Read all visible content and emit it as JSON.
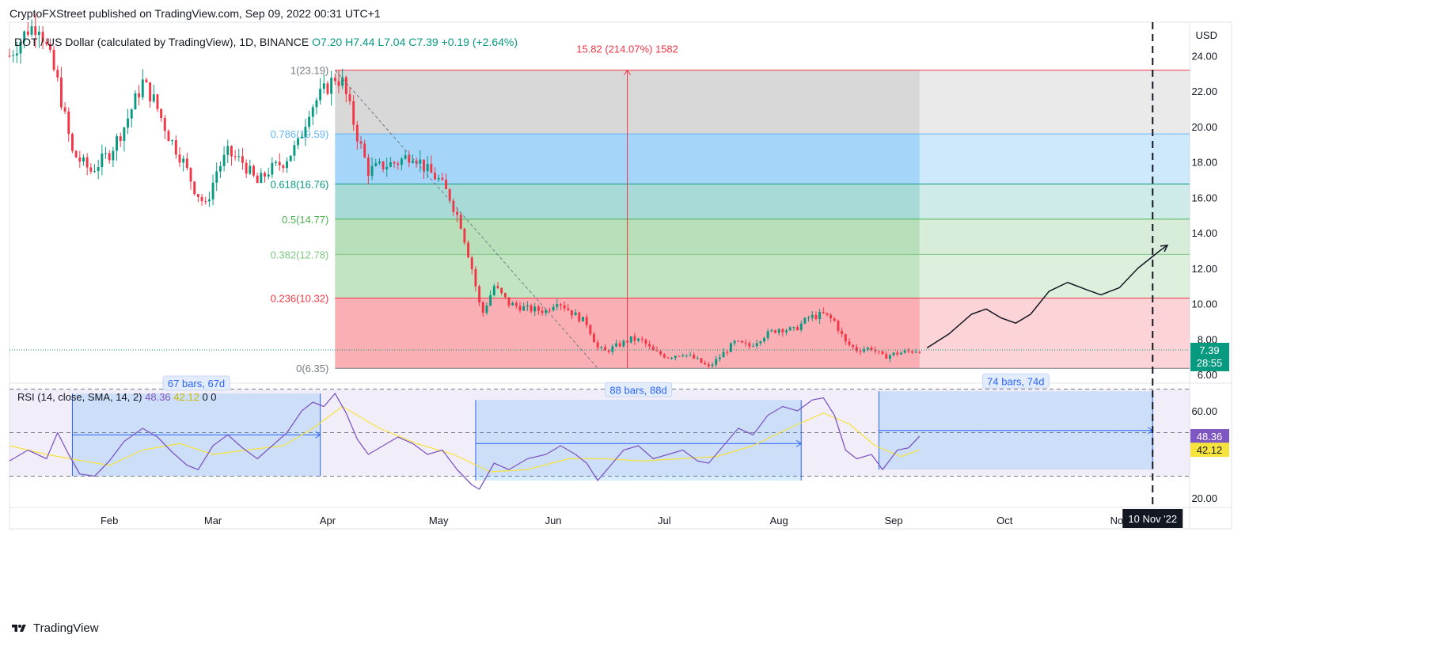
{
  "header": {
    "publish_line": "CryptoFXStreet published on TradingView.com, Sep 09, 2022 00:31 UTC+1"
  },
  "footer": {
    "brand": "TradingView"
  },
  "symbol_bar": {
    "symbol": "DOT / US Dollar (calculated by TradingView), 1D, BINANCE",
    "open": "O7.20",
    "high": "H7.44",
    "low": "L7.04",
    "close": "C7.39",
    "change": "+0.19 (+2.64%)"
  },
  "rsi_bar": {
    "label": "RSI (14, close, SMA, 14, 2)",
    "rsi_value": "48.36",
    "sma_value": "42.12",
    "extra": "0 0"
  },
  "colors": {
    "up": "#089981",
    "down": "#f23645",
    "rsi": "#7e57c2",
    "rsi_ma": "#f7e33e",
    "fib_line_red": "#f23645",
    "fib_light_blue": "#64b5f6",
    "fib_teal": "#089981",
    "fib_green": "#4caf50",
    "fib_lightgreen": "#81c784",
    "fib_gray": "#787b86",
    "measure_blue": "#2962ff"
  },
  "chart_data": [
    {
      "type": "candlestick",
      "title": "DOT / US Dollar (calculated by TradingView), 1D, BINANCE",
      "ylabel": "USD",
      "y_ticks": [
        "6.00",
        "8.00",
        "10.00",
        "12.00",
        "14.00",
        "16.00",
        "18.00",
        "20.00",
        "22.00",
        "24.00"
      ],
      "ylim": [
        5.6,
        25.9
      ],
      "x_ticks": [
        "Feb",
        "Mar",
        "Apr",
        "May",
        "Jun",
        "Jul",
        "Aug",
        "Sep",
        "Oct",
        "Nov"
      ],
      "x_tick_dates": [
        "2022-02-01",
        "2022-03-01",
        "2022-04-01",
        "2022-05-01",
        "2022-06-01",
        "2022-07-01",
        "2022-08-01",
        "2022-09-01",
        "2022-10-01",
        "2022-11-01"
      ],
      "x_range": [
        "2022-01-05",
        "2022-11-20"
      ],
      "trend_close": [
        [
          "2022-01-05",
          24.0
        ],
        [
          "2022-01-10",
          25.5
        ],
        [
          "2022-01-13",
          25.8
        ],
        [
          "2022-01-18",
          22.5
        ],
        [
          "2022-01-22",
          18.5
        ],
        [
          "2022-01-27",
          17.5
        ],
        [
          "2022-02-01",
          18.5
        ],
        [
          "2022-02-05",
          20.0
        ],
        [
          "2022-02-10",
          22.5
        ],
        [
          "2022-02-13",
          21.5
        ],
        [
          "2022-02-17",
          19.5
        ],
        [
          "2022-02-21",
          18.0
        ],
        [
          "2022-02-24",
          16.5
        ],
        [
          "2022-02-27",
          15.5
        ],
        [
          "2022-03-02",
          17.5
        ],
        [
          "2022-03-05",
          18.5
        ],
        [
          "2022-03-09",
          18.0
        ],
        [
          "2022-03-13",
          16.8
        ],
        [
          "2022-03-16",
          17.5
        ],
        [
          "2022-03-20",
          18.0
        ],
        [
          "2022-03-24",
          19.0
        ],
        [
          "2022-03-27",
          21.0
        ],
        [
          "2022-03-31",
          22.0
        ],
        [
          "2022-04-03",
          22.8
        ],
        [
          "2022-04-05",
          22.5
        ],
        [
          "2022-04-09",
          19.5
        ],
        [
          "2022-04-12",
          17.5
        ],
        [
          "2022-04-16",
          17.8
        ],
        [
          "2022-04-20",
          18.0
        ],
        [
          "2022-04-24",
          18.5
        ],
        [
          "2022-04-28",
          17.5
        ],
        [
          "2022-05-01",
          17.0
        ],
        [
          "2022-05-04",
          16.0
        ],
        [
          "2022-05-07",
          14.5
        ],
        [
          "2022-05-10",
          12.0
        ],
        [
          "2022-05-12",
          10.0
        ],
        [
          "2022-05-13",
          9.5
        ],
        [
          "2022-05-16",
          11.0
        ],
        [
          "2022-05-20",
          10.0
        ],
        [
          "2022-05-25",
          9.7
        ],
        [
          "2022-05-30",
          9.6
        ],
        [
          "2022-06-02",
          10.2
        ],
        [
          "2022-06-06",
          9.5
        ],
        [
          "2022-06-10",
          8.9
        ],
        [
          "2022-06-13",
          7.5
        ],
        [
          "2022-06-15",
          7.3
        ],
        [
          "2022-06-18",
          7.6
        ],
        [
          "2022-06-22",
          8.0
        ],
        [
          "2022-06-25",
          7.9
        ],
        [
          "2022-06-28",
          7.3
        ],
        [
          "2022-07-02",
          7.0
        ],
        [
          "2022-07-06",
          7.2
        ],
        [
          "2022-07-10",
          6.8
        ],
        [
          "2022-07-13",
          6.4
        ],
        [
          "2022-07-16",
          7.0
        ],
        [
          "2022-07-20",
          7.8
        ],
        [
          "2022-07-24",
          7.6
        ],
        [
          "2022-07-28",
          8.2
        ],
        [
          "2022-08-01",
          8.6
        ],
        [
          "2022-08-05",
          8.5
        ],
        [
          "2022-08-09",
          9.2
        ],
        [
          "2022-08-13",
          9.4
        ],
        [
          "2022-08-16",
          9.0
        ],
        [
          "2022-08-19",
          7.8
        ],
        [
          "2022-08-22",
          7.4
        ],
        [
          "2022-08-26",
          7.5
        ],
        [
          "2022-08-29",
          7.0
        ],
        [
          "2022-09-02",
          7.2
        ],
        [
          "2022-09-05",
          7.3
        ],
        [
          "2022-09-08",
          7.39
        ]
      ],
      "fibonacci": {
        "from": "2022-04-03",
        "to": "2022-09-08",
        "extends_to": "2022-11-20",
        "levels": [
          {
            "label": "1(23.19)",
            "price": 23.19
          },
          {
            "label": "0.786(19.59)",
            "price": 19.59
          },
          {
            "label": "0.618(16.76)",
            "price": 16.76
          },
          {
            "label": "0.5(14.77)",
            "price": 14.77
          },
          {
            "label": "0.382(12.78)",
            "price": 12.78
          },
          {
            "label": "0.236(10.32)",
            "price": 10.32
          },
          {
            "label": "0(6.35)",
            "price": 6.35
          }
        ]
      },
      "measure_label": "15.82 (214.07%) 1582",
      "measure_date": "2022-06-21",
      "trend_line": [
        [
          "2022-04-03",
          23.19
        ],
        [
          "2022-06-13",
          6.35
        ]
      ],
      "projection_path": [
        [
          "2022-09-10",
          7.5
        ],
        [
          "2022-09-16",
          8.3
        ],
        [
          "2022-09-22",
          9.4
        ],
        [
          "2022-09-26",
          9.7
        ],
        [
          "2022-09-30",
          9.2
        ],
        [
          "2022-10-04",
          8.9
        ],
        [
          "2022-10-08",
          9.4
        ],
        [
          "2022-10-13",
          10.7
        ],
        [
          "2022-10-18",
          11.2
        ],
        [
          "2022-10-23",
          10.8
        ],
        [
          "2022-10-27",
          10.5
        ],
        [
          "2022-11-01",
          10.9
        ],
        [
          "2022-11-06",
          12.0
        ],
        [
          "2022-11-12",
          13.0
        ],
        [
          "2022-11-14",
          13.3
        ]
      ],
      "future_marker_date": "2022-11-10",
      "future_marker_label": "10 Nov '22",
      "last_price": "7.39",
      "countdown": "28:55"
    },
    {
      "type": "line",
      "title": "RSI (14, close, SMA, 14, 2)",
      "y_ticks": [
        "20.00",
        "60.00"
      ],
      "ylim": [
        16,
        72
      ],
      "bands": [
        70,
        50,
        30
      ],
      "series": [
        {
          "name": "RSI",
          "values": [
            [
              "2022-01-05",
              37
            ],
            [
              "2022-01-10",
              42
            ],
            [
              "2022-01-15",
              38
            ],
            [
              "2022-01-18",
              50
            ],
            [
              "2022-01-21",
              40
            ],
            [
              "2022-01-24",
              31
            ],
            [
              "2022-01-28",
              30
            ],
            [
              "2022-02-01",
              37
            ],
            [
              "2022-02-05",
              46
            ],
            [
              "2022-02-10",
              52
            ],
            [
              "2022-02-14",
              48
            ],
            [
              "2022-02-18",
              41
            ],
            [
              "2022-02-22",
              35
            ],
            [
              "2022-02-25",
              33
            ],
            [
              "2022-03-01",
              44
            ],
            [
              "2022-03-05",
              49
            ],
            [
              "2022-03-09",
              43
            ],
            [
              "2022-03-13",
              38
            ],
            [
              "2022-03-17",
              44
            ],
            [
              "2022-03-21",
              50
            ],
            [
              "2022-03-25",
              60
            ],
            [
              "2022-03-28",
              64
            ],
            [
              "2022-03-31",
              62
            ],
            [
              "2022-04-03",
              68
            ],
            [
              "2022-04-06",
              59
            ],
            [
              "2022-04-09",
              47
            ],
            [
              "2022-04-12",
              40
            ],
            [
              "2022-04-16",
              44
            ],
            [
              "2022-04-20",
              48
            ],
            [
              "2022-04-24",
              45
            ],
            [
              "2022-04-28",
              40
            ],
            [
              "2022-05-02",
              42
            ],
            [
              "2022-05-06",
              33
            ],
            [
              "2022-05-10",
              26
            ],
            [
              "2022-05-12",
              24
            ],
            [
              "2022-05-16",
              36
            ],
            [
              "2022-05-20",
              33
            ],
            [
              "2022-05-25",
              38
            ],
            [
              "2022-05-30",
              40
            ],
            [
              "2022-06-03",
              44
            ],
            [
              "2022-06-07",
              40
            ],
            [
              "2022-06-10",
              36
            ],
            [
              "2022-06-13",
              28
            ],
            [
              "2022-06-16",
              34
            ],
            [
              "2022-06-20",
              42
            ],
            [
              "2022-06-24",
              44
            ],
            [
              "2022-06-28",
              38
            ],
            [
              "2022-07-02",
              40
            ],
            [
              "2022-07-06",
              42
            ],
            [
              "2022-07-10",
              37
            ],
            [
              "2022-07-13",
              36
            ],
            [
              "2022-07-17",
              44
            ],
            [
              "2022-07-21",
              52
            ],
            [
              "2022-07-25",
              49
            ],
            [
              "2022-07-29",
              58
            ],
            [
              "2022-08-02",
              62
            ],
            [
              "2022-08-06",
              60
            ],
            [
              "2022-08-10",
              65
            ],
            [
              "2022-08-13",
              66
            ],
            [
              "2022-08-16",
              58
            ],
            [
              "2022-08-19",
              42
            ],
            [
              "2022-08-22",
              38
            ],
            [
              "2022-08-26",
              40
            ],
            [
              "2022-08-29",
              33
            ],
            [
              "2022-09-02",
              42
            ],
            [
              "2022-09-05",
              43
            ],
            [
              "2022-09-08",
              48.36
            ]
          ]
        },
        {
          "name": "SMA",
          "values": [
            [
              "2022-01-05",
              44
            ],
            [
              "2022-01-15",
              40
            ],
            [
              "2022-01-25",
              37
            ],
            [
              "2022-02-01",
              35
            ],
            [
              "2022-02-10",
              42
            ],
            [
              "2022-02-20",
              45
            ],
            [
              "2022-03-01",
              40
            ],
            [
              "2022-03-10",
              42
            ],
            [
              "2022-03-20",
              44
            ],
            [
              "2022-03-28",
              52
            ],
            [
              "2022-04-05",
              62
            ],
            [
              "2022-04-15",
              52
            ],
            [
              "2022-04-25",
              45
            ],
            [
              "2022-05-05",
              40
            ],
            [
              "2022-05-15",
              32
            ],
            [
              "2022-05-25",
              33
            ],
            [
              "2022-06-05",
              38
            ],
            [
              "2022-06-15",
              38
            ],
            [
              "2022-06-25",
              37
            ],
            [
              "2022-07-05",
              38
            ],
            [
              "2022-07-15",
              39
            ],
            [
              "2022-07-25",
              44
            ],
            [
              "2022-08-05",
              53
            ],
            [
              "2022-08-13",
              59
            ],
            [
              "2022-08-20",
              54
            ],
            [
              "2022-08-27",
              44
            ],
            [
              "2022-09-03",
              39
            ],
            [
              "2022-09-08",
              42.12
            ]
          ]
        }
      ],
      "measures": [
        {
          "label": "67 bars, 67d",
          "from": "2022-01-22",
          "to": "2022-03-30",
          "top": 68,
          "bottom": 30,
          "arrow_at": 49
        },
        {
          "label": "88 bars, 88d",
          "from": "2022-05-11",
          "to": "2022-08-07",
          "top": 65,
          "bottom": 28,
          "arrow_at": 45
        },
        {
          "label": "74 bars, 74d",
          "from": "2022-08-28",
          "to": "2022-11-10",
          "top": 69,
          "bottom": 33,
          "arrow_at": 51
        }
      ]
    }
  ]
}
